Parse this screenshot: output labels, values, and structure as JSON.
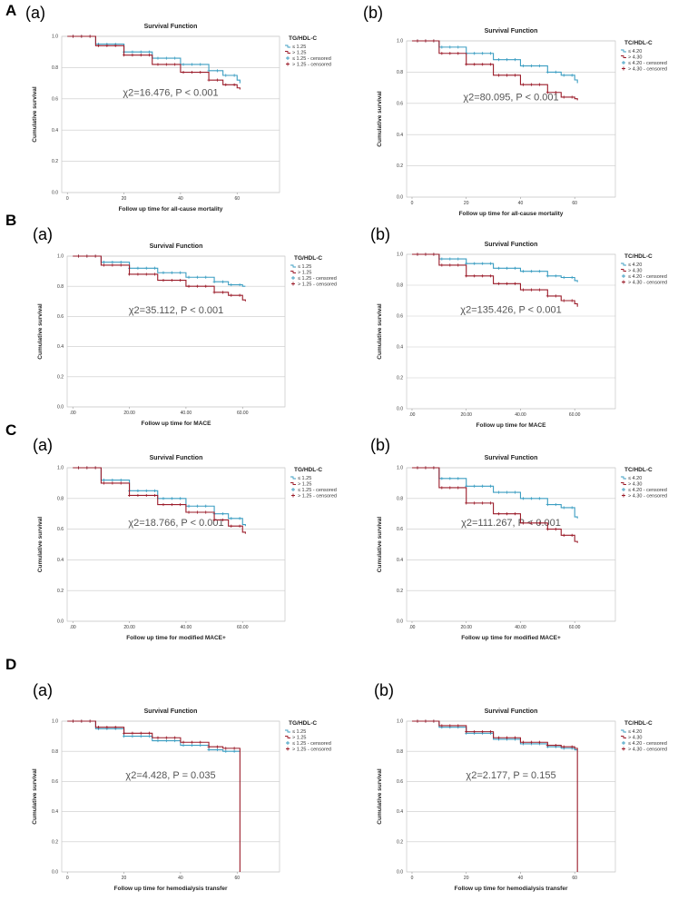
{
  "rows": [
    {
      "letter": "A",
      "panel_letters": [
        "(a)",
        "(b)"
      ]
    },
    {
      "letter": "B",
      "panel_letters": [
        "(a)",
        "(b)"
      ]
    },
    {
      "letter": "C",
      "panel_letters": [
        "(a)",
        "(b)"
      ]
    },
    {
      "letter": "D",
      "panel_letters": [
        "(a)",
        "(b)"
      ]
    }
  ],
  "colors": {
    "low": "#3c9ec2",
    "high": "#9b1c2a",
    "grid": "#c9c9c9",
    "stat": "#555555"
  },
  "chart_data": [
    {
      "id": "A-a",
      "type": "line",
      "title": "Survival Function",
      "xlabel": "Follow up time for all-cause mortality",
      "ylabel": "Cumulative survival",
      "xticks": [
        "0",
        "20",
        "40",
        "60"
      ],
      "xlim": [
        -2,
        75
      ],
      "yticks": [
        "0.0",
        "0.2",
        "0.4",
        "0.6",
        "0.8",
        "1.0"
      ],
      "ylim": [
        0,
        1
      ],
      "legend_title": "TG/HDL-C",
      "legend": [
        "≤ 1.25",
        "> 1.25",
        "≤ 1.25 - censored",
        "> 1.25 - censored"
      ],
      "annotation": "χ2=16.476, P < 0.001",
      "series": [
        {
          "name": "≤ 1.25",
          "x": [
            0,
            10,
            20,
            30,
            40,
            50,
            55,
            60,
            61
          ],
          "y": [
            1.0,
            0.95,
            0.9,
            0.86,
            0.82,
            0.78,
            0.75,
            0.72,
            0.7
          ]
        },
        {
          "name": "> 1.25",
          "x": [
            0,
            10,
            20,
            30,
            40,
            50,
            55,
            60,
            61
          ],
          "y": [
            1.0,
            0.94,
            0.88,
            0.82,
            0.77,
            0.72,
            0.69,
            0.67,
            0.66
          ]
        }
      ]
    },
    {
      "id": "A-b",
      "type": "line",
      "title": "Survival Function",
      "xlabel": "Follow up time for all-cause mortality",
      "ylabel": "Cumulative survival",
      "xticks": [
        "0",
        "20",
        "40",
        "60"
      ],
      "xlim": [
        -2,
        75
      ],
      "yticks": [
        "0.0",
        "0.2",
        "0.4",
        "0.6",
        "0.8",
        "1.0"
      ],
      "ylim": [
        0,
        1
      ],
      "legend_title": "TC/HDL-C",
      "legend": [
        "≤ 4.20",
        "> 4.30",
        "≤ 4.20 - censored",
        "> 4.30 - censored"
      ],
      "annotation": "χ2=80.095, P < 0.001",
      "series": [
        {
          "name": "≤ 4.20",
          "x": [
            0,
            10,
            20,
            30,
            40,
            50,
            55,
            60,
            61
          ],
          "y": [
            1.0,
            0.96,
            0.92,
            0.88,
            0.84,
            0.8,
            0.78,
            0.75,
            0.73
          ]
        },
        {
          "name": "> 4.30",
          "x": [
            0,
            10,
            20,
            30,
            40,
            50,
            55,
            60,
            61
          ],
          "y": [
            1.0,
            0.92,
            0.85,
            0.78,
            0.72,
            0.67,
            0.64,
            0.63,
            0.62
          ]
        }
      ]
    },
    {
      "id": "B-a",
      "type": "line",
      "title": "Survival Function",
      "xlabel": "Follow up time for MACE",
      "ylabel": "Cumulative survival",
      "xticks": [
        ".00",
        "20.00",
        "40.00",
        "60.00"
      ],
      "xlim": [
        -2,
        75
      ],
      "yticks": [
        "0.0",
        "0.2",
        "0.4",
        "0.6",
        "0.8",
        "1.0"
      ],
      "ylim": [
        0,
        1
      ],
      "legend_title": "TG/HDL-C",
      "legend": [
        "≤ 1.25",
        "> 1.25",
        "≤ 1.25 - censored",
        "> 1.25 - censored"
      ],
      "annotation": "χ2=35.112, P < 0.001",
      "series": [
        {
          "name": "≤ 1.25",
          "x": [
            0,
            10,
            20,
            30,
            40,
            50,
            55,
            60,
            61
          ],
          "y": [
            1.0,
            0.96,
            0.92,
            0.89,
            0.86,
            0.83,
            0.81,
            0.8,
            0.8
          ]
        },
        {
          "name": "> 1.25",
          "x": [
            0,
            10,
            20,
            30,
            40,
            50,
            55,
            60,
            61
          ],
          "y": [
            1.0,
            0.94,
            0.88,
            0.84,
            0.8,
            0.76,
            0.74,
            0.71,
            0.7
          ]
        }
      ]
    },
    {
      "id": "B-b",
      "type": "line",
      "title": "Survival Function",
      "xlabel": "Follow up time for MACE",
      "ylabel": "Cumulative survival",
      "xticks": [
        ".00",
        "20.00",
        "40.00",
        "60.00"
      ],
      "xlim": [
        -2,
        75
      ],
      "yticks": [
        "0.0",
        "0.2",
        "0.4",
        "0.6",
        "0.8",
        "1.0"
      ],
      "ylim": [
        0,
        1
      ],
      "legend_title": "TC/HDL-C",
      "legend": [
        "≤ 4.20",
        "> 4.30",
        "≤ 4.20 - censored",
        "> 4.30 - censored"
      ],
      "annotation": "χ2=135.426, P < 0.001",
      "series": [
        {
          "name": "≤ 4.20",
          "x": [
            0,
            10,
            20,
            30,
            40,
            50,
            55,
            60,
            61
          ],
          "y": [
            1.0,
            0.97,
            0.94,
            0.91,
            0.89,
            0.86,
            0.85,
            0.83,
            0.82
          ]
        },
        {
          "name": "> 4.30",
          "x": [
            0,
            10,
            20,
            30,
            40,
            50,
            55,
            60,
            61
          ],
          "y": [
            1.0,
            0.93,
            0.86,
            0.81,
            0.77,
            0.73,
            0.7,
            0.68,
            0.66
          ]
        }
      ]
    },
    {
      "id": "C-a",
      "type": "line",
      "title": "Survival Function",
      "xlabel": "Follow up time for modified MACE+",
      "ylabel": "Cumulative survival",
      "xticks": [
        ".00",
        "20.00",
        "40.00",
        "60.00"
      ],
      "xlim": [
        -2,
        75
      ],
      "yticks": [
        "0.0",
        "0.2",
        "0.4",
        "0.6",
        "0.8",
        "1.0"
      ],
      "ylim": [
        0,
        1
      ],
      "legend_title": "TG/HDL-C",
      "legend": [
        "≤ 1.25",
        "> 1.25",
        "≤ 1.25 - censored",
        "> 1.25 - censored"
      ],
      "annotation": "χ2=18.766, P < 0.001",
      "series": [
        {
          "name": "≤ 1.25",
          "x": [
            0,
            10,
            20,
            30,
            40,
            50,
            55,
            60,
            61
          ],
          "y": [
            1.0,
            0.92,
            0.85,
            0.8,
            0.75,
            0.7,
            0.67,
            0.63,
            0.62
          ]
        },
        {
          "name": "> 1.25",
          "x": [
            0,
            10,
            20,
            30,
            40,
            50,
            55,
            60,
            61
          ],
          "y": [
            1.0,
            0.9,
            0.82,
            0.76,
            0.71,
            0.66,
            0.62,
            0.58,
            0.57
          ]
        }
      ]
    },
    {
      "id": "C-b",
      "type": "line",
      "title": "Survival Function",
      "xlabel": "Follow up time for modified MACE+",
      "ylabel": "Cumulative survival",
      "xticks": [
        ".00",
        "20.00",
        "40.00",
        "60.00"
      ],
      "xlim": [
        -2,
        75
      ],
      "yticks": [
        "0.0",
        "0.2",
        "0.4",
        "0.6",
        "0.8",
        "1.0"
      ],
      "ylim": [
        0,
        1
      ],
      "legend_title": "TC/HDL-C",
      "legend": [
        "≤ 4.20",
        "> 4.30",
        "≤ 4.20 - censored",
        "> 4.30 - censored"
      ],
      "annotation": "χ2=111.267, P < 0.001",
      "series": [
        {
          "name": "≤ 4.20",
          "x": [
            0,
            10,
            20,
            30,
            40,
            50,
            55,
            60,
            61
          ],
          "y": [
            1.0,
            0.93,
            0.88,
            0.84,
            0.8,
            0.76,
            0.74,
            0.68,
            0.67
          ]
        },
        {
          "name": "> 4.30",
          "x": [
            0,
            10,
            20,
            30,
            40,
            50,
            55,
            60,
            61
          ],
          "y": [
            1.0,
            0.87,
            0.77,
            0.7,
            0.64,
            0.6,
            0.56,
            0.52,
            0.51
          ]
        }
      ]
    },
    {
      "id": "D-a",
      "type": "line",
      "title": "Survival Function",
      "xlabel": "Follow up time for hemodialysis transfer",
      "ylabel": "Cumulative survival",
      "xticks": [
        "0",
        "20",
        "40",
        "60"
      ],
      "xlim": [
        -2,
        75
      ],
      "yticks": [
        "0.0",
        "0.2",
        "0.4",
        "0.6",
        "0.8",
        "1.0"
      ],
      "ylim": [
        0,
        1
      ],
      "legend_title": "TG/HDL-C",
      "legend": [
        "≤ 1.25",
        "> 1.25",
        "≤ 1.25 - censored",
        "> 1.25 - censored"
      ],
      "annotation": "χ2=4.428, P = 0.035",
      "series": [
        {
          "name": "≤ 1.25",
          "x": [
            0,
            10,
            20,
            30,
            40,
            50,
            55,
            60,
            61
          ],
          "y": [
            1.0,
            0.95,
            0.9,
            0.87,
            0.84,
            0.81,
            0.8,
            0.8,
            0.8
          ]
        },
        {
          "name": "> 1.25",
          "x": [
            0,
            10,
            20,
            30,
            40,
            50,
            55,
            60,
            61,
            61
          ],
          "y": [
            1.0,
            0.96,
            0.92,
            0.89,
            0.86,
            0.83,
            0.82,
            0.82,
            0.82,
            0.0
          ]
        }
      ]
    },
    {
      "id": "D-b",
      "type": "line",
      "title": "Survival Function",
      "xlabel": "Follow up time for hemodialysis transfer",
      "ylabel": "Cumulative survival",
      "xticks": [
        "0",
        "20",
        "40",
        "60"
      ],
      "xlim": [
        -2,
        75
      ],
      "yticks": [
        "0.0",
        "0.2",
        "0.4",
        "0.6",
        "0.8",
        "1.0"
      ],
      "ylim": [
        0,
        1
      ],
      "legend_title": "TC/HDL-C",
      "legend": [
        "≤ 4.20",
        "> 4.30",
        "≤ 4.20 - censored",
        "> 4.30 - censored"
      ],
      "annotation": "χ2=2.177, P = 0.155",
      "series": [
        {
          "name": "≤ 4.20",
          "x": [
            0,
            10,
            20,
            30,
            40,
            50,
            55,
            60,
            61
          ],
          "y": [
            1.0,
            0.96,
            0.92,
            0.88,
            0.85,
            0.83,
            0.82,
            0.81,
            0.81
          ]
        },
        {
          "name": "> 4.30",
          "x": [
            0,
            10,
            20,
            30,
            40,
            50,
            55,
            60,
            61,
            61
          ],
          "y": [
            1.0,
            0.97,
            0.93,
            0.89,
            0.86,
            0.84,
            0.83,
            0.82,
            0.82,
            0.0
          ]
        }
      ]
    }
  ]
}
